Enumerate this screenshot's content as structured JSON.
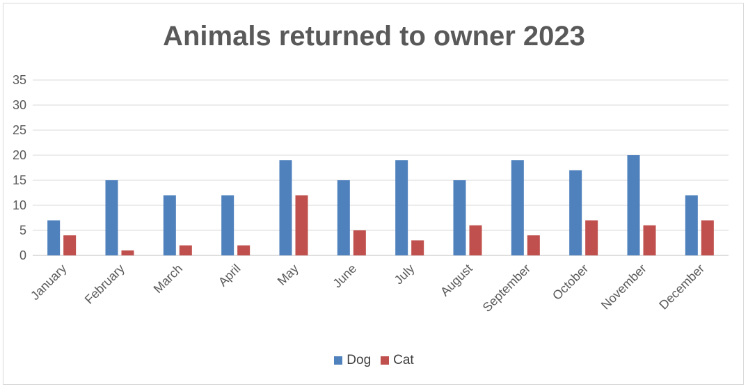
{
  "chart_data": {
    "type": "bar",
    "title": "Animals returned to owner 2023",
    "xlabel": "",
    "ylabel": "",
    "categories": [
      "January",
      "February",
      "March",
      "April",
      "May",
      "June",
      "July",
      "August",
      "September",
      "October",
      "November",
      "December"
    ],
    "series": [
      {
        "name": "Dog",
        "color": "#4f81bd",
        "values": [
          7,
          15,
          12,
          12,
          19,
          15,
          19,
          15,
          19,
          17,
          20,
          12
        ]
      },
      {
        "name": "Cat",
        "color": "#c0504d",
        "values": [
          4,
          1,
          2,
          2,
          12,
          5,
          3,
          6,
          4,
          7,
          6,
          7
        ]
      }
    ],
    "ylim": [
      0,
      35
    ],
    "yticks": [
      "0",
      "5",
      "10",
      "15",
      "20",
      "25",
      "30",
      "35"
    ],
    "grid": true,
    "legend_position": "bottom"
  }
}
